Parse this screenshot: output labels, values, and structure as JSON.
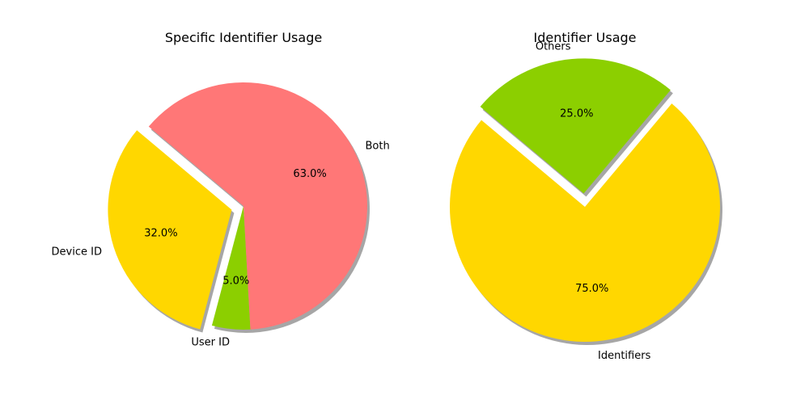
{
  "chart_data": [
    {
      "type": "pie",
      "title": "Specific Identifier Usage",
      "start_angle_deg": 140,
      "shadow": true,
      "slices": [
        {
          "label": "Device ID",
          "value": 32.0,
          "pct_label": "32.0%",
          "color": "#ffd700",
          "explode": 0.1
        },
        {
          "label": "User ID",
          "value": 5.0,
          "pct_label": "5.0%",
          "color": "#8ccf00",
          "explode": 0.0
        },
        {
          "label": "Both",
          "value": 63.0,
          "pct_label": "63.0%",
          "color": "#ff7777",
          "explode": 0.0
        }
      ]
    },
    {
      "type": "pie",
      "title": "Identifier Usage",
      "start_angle_deg": 140,
      "shadow": true,
      "slices": [
        {
          "label": "Identifiers",
          "value": 75.0,
          "pct_label": "75.0%",
          "color": "#ffd700",
          "explode": 0.0
        },
        {
          "label": "Others",
          "value": 25.0,
          "pct_label": "25.0%",
          "color": "#8ccf00",
          "explode": 0.1
        }
      ]
    }
  ]
}
